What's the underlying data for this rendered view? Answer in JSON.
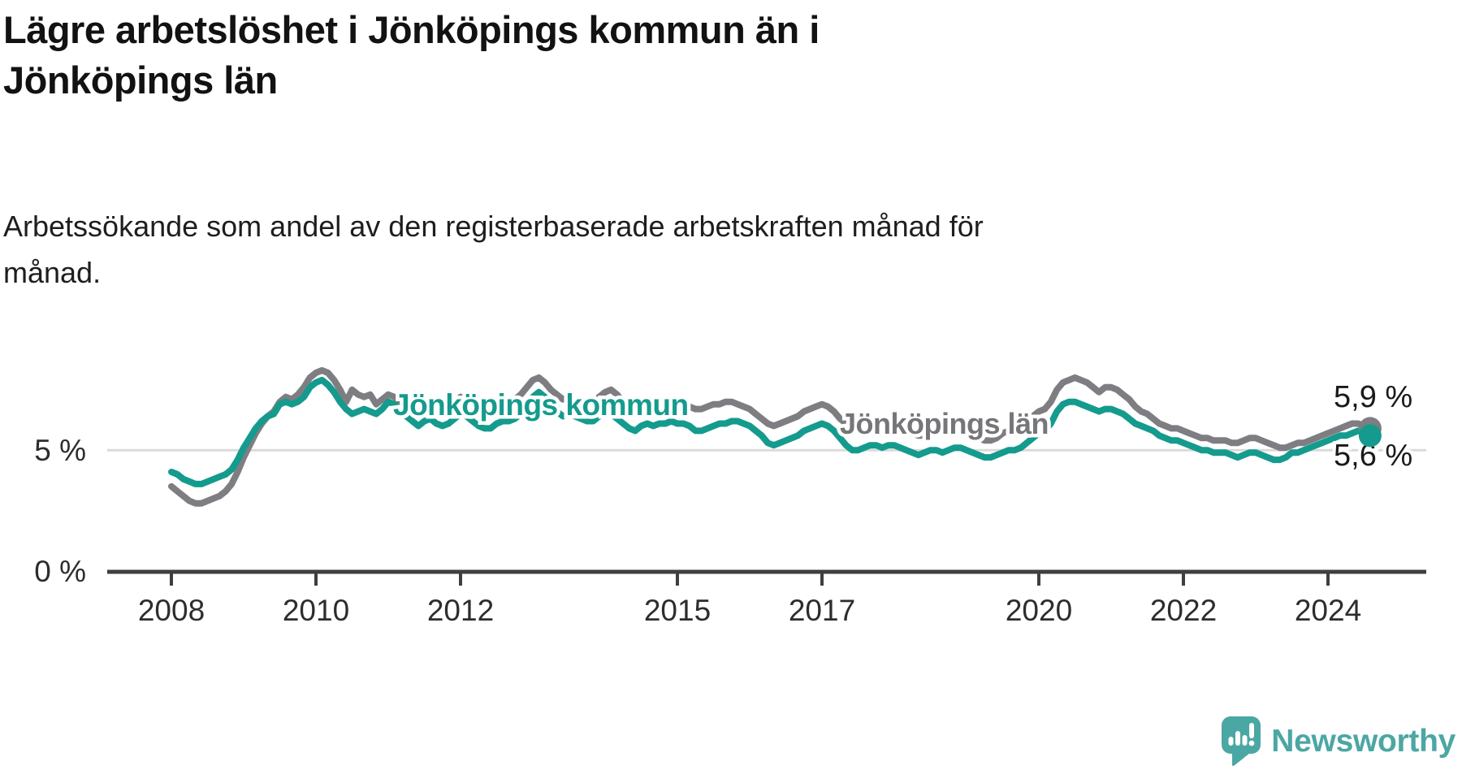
{
  "header": {
    "title_lines": [
      "Lägre arbetslöshet i Jönköpings kommun än i",
      "Jönköpings län"
    ],
    "subtitle_lines": [
      "Arbetssökande som andel av den registerbaserade arbetskraften månad för",
      "månad."
    ]
  },
  "chart_data": {
    "type": "line",
    "title": "Lägre arbetslöshet i Jönköpings kommun än i Jönköpings län",
    "subtitle": "Arbetssökande som andel av den registerbaserade arbetskraften månad för månad.",
    "x_unit": "month",
    "x_start": "2008-01",
    "x_end": "2024-08",
    "x_tick_years": [
      2008,
      2010,
      2012,
      2015,
      2017,
      2020,
      2022,
      2024
    ],
    "y_ticks": [
      {
        "value": 0,
        "label": "0 %"
      },
      {
        "value": 5,
        "label": "5 %"
      }
    ],
    "ylim": [
      0,
      11
    ],
    "grid": "horizontal-5pct-only",
    "legend_position": "inline-labels",
    "axis_color": "#3f3f3f",
    "grid_color": "#dadada",
    "tick_label_color": "#2d2d2d",
    "end_label_color": "#1a1a1a",
    "series": [
      {
        "name": "Jönköpings län",
        "color": "#7E7E82",
        "label_color": "#76767A",
        "end_label": "5,9 %",
        "end_value": 5.9,
        "values": [
          3.5,
          3.3,
          3.1,
          2.9,
          2.8,
          2.8,
          2.9,
          3.0,
          3.1,
          3.3,
          3.6,
          4.1,
          4.7,
          5.2,
          5.7,
          6.1,
          6.4,
          6.6,
          7.0,
          7.2,
          7.1,
          7.3,
          7.6,
          8.0,
          8.2,
          8.3,
          8.2,
          7.9,
          7.5,
          7.0,
          7.5,
          7.3,
          7.2,
          7.3,
          6.9,
          7.1,
          7.3,
          7.2,
          7.0,
          6.8,
          6.6,
          6.5,
          6.7,
          6.8,
          6.7,
          6.7,
          6.8,
          7.0,
          7.2,
          7.1,
          7.0,
          6.8,
          6.7,
          6.7,
          6.9,
          7.0,
          7.0,
          7.1,
          7.3,
          7.6,
          7.9,
          8.0,
          7.8,
          7.5,
          7.3,
          7.1,
          7.2,
          7.1,
          7.0,
          6.9,
          6.9,
          7.2,
          7.4,
          7.5,
          7.3,
          7.0,
          6.8,
          6.7,
          6.8,
          6.9,
          6.8,
          6.8,
          6.8,
          6.9,
          7.0,
          6.9,
          6.8,
          6.7,
          6.7,
          6.8,
          6.9,
          6.9,
          7.0,
          7.0,
          6.9,
          6.8,
          6.7,
          6.5,
          6.3,
          6.1,
          6.0,
          6.1,
          6.2,
          6.3,
          6.4,
          6.6,
          6.7,
          6.8,
          6.9,
          6.8,
          6.6,
          6.3,
          6.1,
          5.9,
          5.9,
          6.0,
          6.0,
          6.0,
          5.9,
          6.0,
          6.0,
          5.9,
          5.8,
          5.7,
          5.6,
          5.6,
          5.7,
          5.8,
          5.7,
          5.7,
          5.7,
          5.8,
          5.7,
          5.6,
          5.5,
          5.4,
          5.4,
          5.5,
          5.7,
          5.8,
          5.8,
          5.9,
          6.1,
          6.4,
          6.6,
          6.7,
          7.0,
          7.5,
          7.8,
          7.9,
          8.0,
          7.9,
          7.8,
          7.6,
          7.4,
          7.6,
          7.6,
          7.5,
          7.3,
          7.1,
          6.8,
          6.6,
          6.5,
          6.3,
          6.1,
          6.0,
          5.9,
          5.9,
          5.8,
          5.7,
          5.6,
          5.5,
          5.5,
          5.4,
          5.4,
          5.4,
          5.3,
          5.3,
          5.4,
          5.5,
          5.5,
          5.4,
          5.3,
          5.2,
          5.1,
          5.1,
          5.2,
          5.3,
          5.3,
          5.4,
          5.5,
          5.6,
          5.7,
          5.8,
          5.9,
          6.0,
          6.1,
          6.1,
          6.0,
          5.9
        ]
      },
      {
        "name": "Jönköpings kommun",
        "color": "#149B8D",
        "label_color": "#149B8D",
        "end_label": "5,6 %",
        "end_value": 5.6,
        "values": [
          4.1,
          4.0,
          3.8,
          3.7,
          3.6,
          3.6,
          3.7,
          3.8,
          3.9,
          4.0,
          4.2,
          4.6,
          5.1,
          5.5,
          5.9,
          6.2,
          6.4,
          6.5,
          6.9,
          7.0,
          6.9,
          7.0,
          7.2,
          7.6,
          7.8,
          7.9,
          7.7,
          7.4,
          7.0,
          6.7,
          6.5,
          6.6,
          6.7,
          6.6,
          6.5,
          6.7,
          7.0,
          6.9,
          6.7,
          6.4,
          6.2,
          6.0,
          6.2,
          6.3,
          6.1,
          6.0,
          6.1,
          6.3,
          6.5,
          6.4,
          6.2,
          6.0,
          5.9,
          5.9,
          6.1,
          6.2,
          6.2,
          6.3,
          6.5,
          6.8,
          7.2,
          7.4,
          7.2,
          6.9,
          6.6,
          6.4,
          6.5,
          6.4,
          6.3,
          6.2,
          6.2,
          6.4,
          6.6,
          6.5,
          6.3,
          6.1,
          5.9,
          5.8,
          6.0,
          6.1,
          6.0,
          6.1,
          6.1,
          6.2,
          6.1,
          6.1,
          6.0,
          5.8,
          5.8,
          5.9,
          6.0,
          6.1,
          6.1,
          6.2,
          6.2,
          6.1,
          6.0,
          5.8,
          5.6,
          5.3,
          5.2,
          5.3,
          5.4,
          5.5,
          5.6,
          5.8,
          5.9,
          6.0,
          6.1,
          6.0,
          5.8,
          5.5,
          5.2,
          5.0,
          5.0,
          5.1,
          5.2,
          5.2,
          5.1,
          5.2,
          5.2,
          5.1,
          5.0,
          4.9,
          4.8,
          4.9,
          5.0,
          5.0,
          4.9,
          5.0,
          5.1,
          5.1,
          5.0,
          4.9,
          4.8,
          4.7,
          4.7,
          4.8,
          4.9,
          5.0,
          5.0,
          5.1,
          5.3,
          5.5,
          5.7,
          5.8,
          6.1,
          6.6,
          6.9,
          7.0,
          7.0,
          6.9,
          6.8,
          6.7,
          6.6,
          6.7,
          6.7,
          6.6,
          6.5,
          6.3,
          6.1,
          6.0,
          5.9,
          5.8,
          5.6,
          5.5,
          5.4,
          5.4,
          5.3,
          5.2,
          5.1,
          5.0,
          5.0,
          4.9,
          4.9,
          4.9,
          4.8,
          4.7,
          4.8,
          4.9,
          4.9,
          4.8,
          4.7,
          4.6,
          4.6,
          4.7,
          4.9,
          4.9,
          5.0,
          5.1,
          5.2,
          5.3,
          5.4,
          5.5,
          5.6,
          5.6,
          5.7,
          5.8,
          5.7,
          5.6
        ]
      }
    ]
  },
  "footer": {
    "brand": "Newsworthy"
  }
}
